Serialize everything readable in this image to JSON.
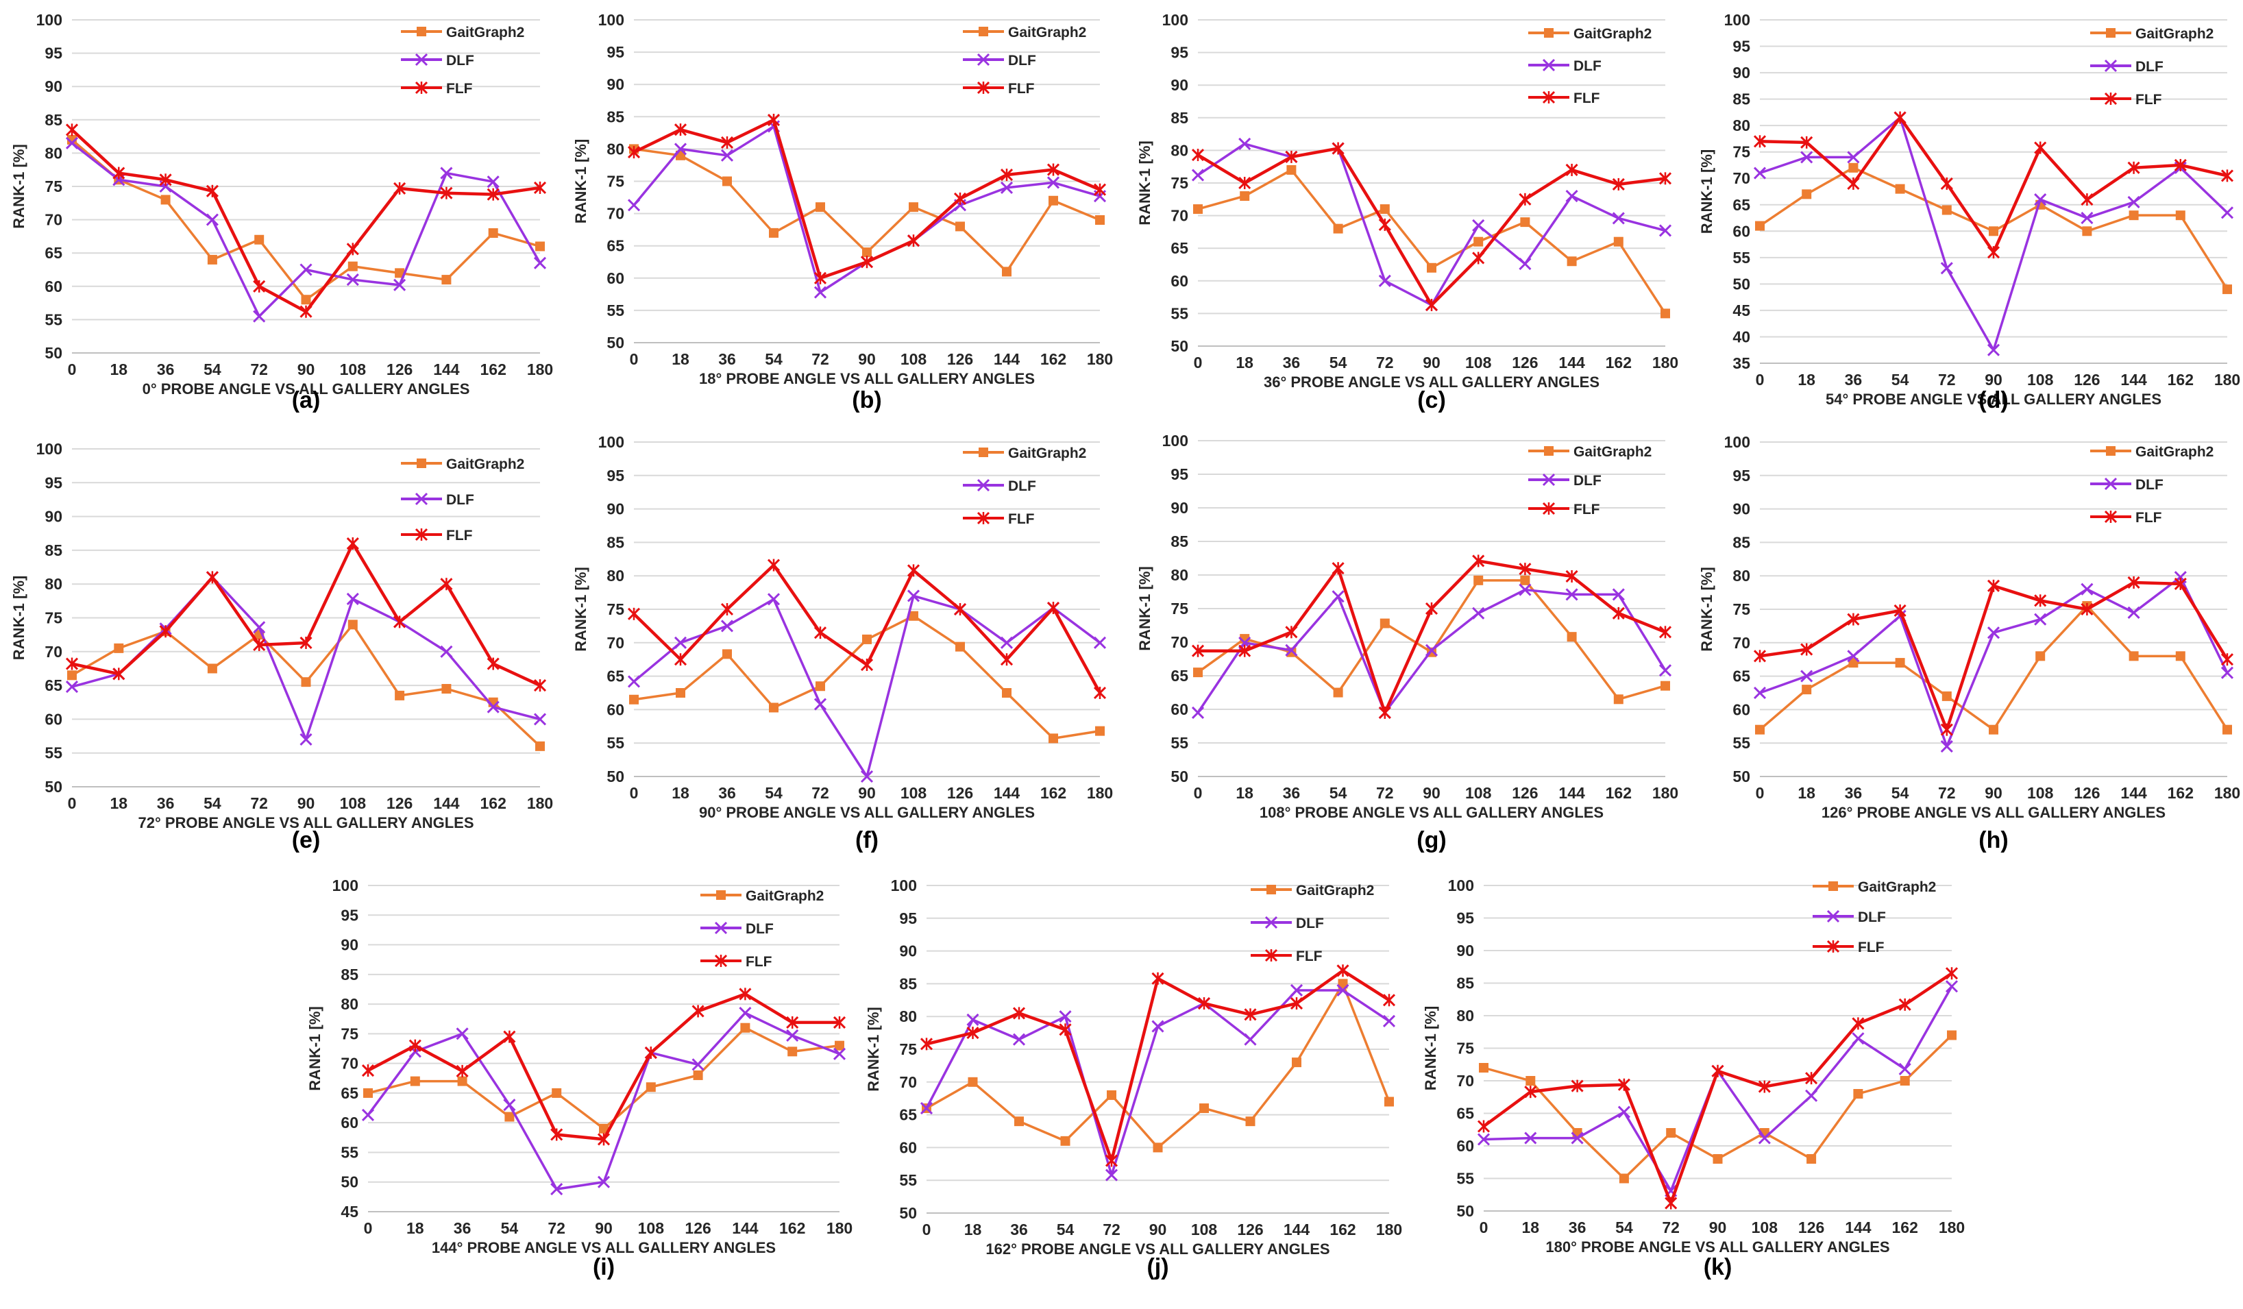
{
  "colors": {
    "GaitGraph2": "#ED7D31",
    "DLF": "#9933E0",
    "FLF": "#E81010"
  },
  "chart_data": [
    {
      "type": "line",
      "panel_label": "(a)",
      "xlabel": "0° PROBE ANGLE VS ALL GALLERY ANGLES",
      "ylabel": "RANK-1 [%]",
      "categories": [
        "0",
        "18",
        "36",
        "54",
        "72",
        "90",
        "108",
        "126",
        "144",
        "162",
        "180"
      ],
      "ylim": [
        50,
        100
      ],
      "yticks": [
        "50",
        "55",
        "60",
        "65",
        "70",
        "75",
        "80",
        "85",
        "90",
        "95",
        "100"
      ],
      "series": [
        {
          "name": "GaitGraph2",
          "values": [
            82,
            76,
            73,
            64,
            67,
            58,
            63,
            62,
            61,
            68,
            66
          ]
        },
        {
          "name": "DLF",
          "values": [
            81.5,
            76,
            75,
            70,
            55.5,
            62.5,
            61,
            60.2,
            77,
            75.7,
            63.5
          ]
        },
        {
          "name": "FLF",
          "values": [
            83.5,
            77,
            76,
            74.3,
            60,
            56.2,
            65.6,
            74.7,
            74,
            73.8,
            74.8
          ]
        }
      ]
    },
    {
      "type": "line",
      "panel_label": "(b)",
      "xlabel": "18° PROBE ANGLE VS ALL GALLERY ANGLES",
      "ylabel": "RANK-1 [%]",
      "categories": [
        "0",
        "18",
        "36",
        "54",
        "72",
        "90",
        "108",
        "126",
        "144",
        "162",
        "180"
      ],
      "ylim": [
        50,
        100
      ],
      "yticks": [
        "50",
        "55",
        "60",
        "65",
        "70",
        "75",
        "80",
        "85",
        "90",
        "95",
        "100"
      ],
      "series": [
        {
          "name": "GaitGraph2",
          "values": [
            80,
            79,
            75,
            67,
            71,
            64,
            71,
            68,
            61,
            72,
            69
          ]
        },
        {
          "name": "DLF",
          "values": [
            71.3,
            80,
            79,
            83.5,
            57.8,
            62.5,
            65.8,
            71.3,
            74,
            74.8,
            72.7
          ]
        },
        {
          "name": "FLF",
          "values": [
            79.5,
            83,
            81,
            84.5,
            60,
            62.5,
            65.8,
            72.3,
            76,
            76.8,
            73.7
          ]
        }
      ]
    },
    {
      "type": "line",
      "panel_label": "(c)",
      "xlabel": "36° PROBE ANGLE VS ALL GALLERY ANGLES",
      "ylabel": "RANK-1 [%]",
      "categories": [
        "0",
        "18",
        "36",
        "54",
        "72",
        "90",
        "108",
        "126",
        "144",
        "162",
        "180"
      ],
      "ylim": [
        50,
        100
      ],
      "yticks": [
        "50",
        "55",
        "60",
        "65",
        "70",
        "75",
        "80",
        "85",
        "90",
        "95",
        "100"
      ],
      "series": [
        {
          "name": "GaitGraph2",
          "values": [
            71,
            73,
            77,
            68,
            71,
            62,
            66,
            69,
            63,
            66,
            55
          ]
        },
        {
          "name": "DLF",
          "values": [
            76.2,
            81,
            79,
            80.3,
            60,
            56.3,
            68.5,
            62.6,
            73,
            69.6,
            67.7
          ]
        },
        {
          "name": "FLF",
          "values": [
            79.3,
            75,
            79,
            80.3,
            68.6,
            56.3,
            63.5,
            72.5,
            77,
            74.8,
            75.7
          ]
        }
      ]
    },
    {
      "type": "line",
      "panel_label": "(d)",
      "xlabel": "54° PROBE ANGLE VS ALL GALLERY ANGLES",
      "ylabel": "RANK-1 [%]",
      "categories": [
        "0",
        "18",
        "36",
        "54",
        "72",
        "90",
        "108",
        "126",
        "144",
        "162",
        "180"
      ],
      "ylim": [
        35,
        100
      ],
      "yticks": [
        "35",
        "40",
        "45",
        "50",
        "55",
        "60",
        "65",
        "70",
        "75",
        "80",
        "85",
        "90",
        "95",
        "100"
      ],
      "series": [
        {
          "name": "GaitGraph2",
          "values": [
            61,
            67,
            72,
            68,
            64,
            60,
            65,
            60,
            63,
            63,
            49
          ]
        },
        {
          "name": "DLF",
          "values": [
            71,
            74,
            74,
            81.5,
            53,
            37.5,
            66,
            62.5,
            65.5,
            72,
            63.5
          ]
        },
        {
          "name": "FLF",
          "values": [
            77,
            76.8,
            69,
            81.5,
            69,
            56,
            75.8,
            66,
            72,
            72.5,
            70.5
          ]
        }
      ]
    },
    {
      "type": "line",
      "panel_label": "(e)",
      "xlabel": "72° PROBE ANGLE VS ALL GALLERY ANGLES",
      "ylabel": "RANK-1 [%]",
      "categories": [
        "0",
        "18",
        "36",
        "54",
        "72",
        "90",
        "108",
        "126",
        "144",
        "162",
        "180"
      ],
      "ylim": [
        50,
        100
      ],
      "yticks": [
        "50",
        "55",
        "60",
        "65",
        "70",
        "75",
        "80",
        "85",
        "90",
        "95",
        "100"
      ],
      "series": [
        {
          "name": "GaitGraph2",
          "values": [
            66.5,
            70.5,
            73,
            67.5,
            72.5,
            65.5,
            74,
            63.5,
            64.5,
            62.5,
            56
          ]
        },
        {
          "name": "DLF",
          "values": [
            64.8,
            66.7,
            73.4,
            81,
            73.6,
            57,
            77.8,
            74.4,
            70,
            61.8,
            60
          ]
        },
        {
          "name": "FLF",
          "values": [
            68.2,
            66.7,
            73,
            81,
            71,
            71.3,
            86,
            74.4,
            80,
            68.2,
            65
          ]
        }
      ]
    },
    {
      "type": "line",
      "panel_label": "(f)",
      "xlabel": "90° PROBE ANGLE VS ALL GALLERY ANGLES",
      "ylabel": "RANK-1 [%]",
      "categories": [
        "0",
        "18",
        "36",
        "54",
        "72",
        "90",
        "108",
        "126",
        "144",
        "162",
        "180"
      ],
      "ylim": [
        50,
        100
      ],
      "yticks": [
        "50",
        "55",
        "60",
        "65",
        "70",
        "75",
        "80",
        "85",
        "90",
        "95",
        "100"
      ],
      "series": [
        {
          "name": "GaitGraph2",
          "values": [
            61.5,
            62.5,
            68.3,
            60.3,
            63.5,
            70.5,
            74,
            69.4,
            62.5,
            55.7,
            56.8
          ]
        },
        {
          "name": "DLF",
          "values": [
            64.2,
            70,
            72.5,
            76.5,
            60.8,
            50,
            77,
            75,
            70,
            75.2,
            70
          ]
        },
        {
          "name": "FLF",
          "values": [
            74.3,
            67.5,
            75,
            81.6,
            71.5,
            66.7,
            80.8,
            75,
            67.5,
            75.2,
            62.5
          ]
        }
      ]
    },
    {
      "type": "line",
      "panel_label": "(g)",
      "xlabel": "108° PROBE ANGLE VS ALL GALLERY ANGLES",
      "ylabel": "RANK-1 [%]",
      "categories": [
        "0",
        "18",
        "36",
        "54",
        "72",
        "90",
        "108",
        "126",
        "144",
        "162",
        "180"
      ],
      "ylim": [
        50,
        100
      ],
      "yticks": [
        "50",
        "55",
        "60",
        "65",
        "70",
        "75",
        "80",
        "85",
        "90",
        "95",
        "100"
      ],
      "series": [
        {
          "name": "GaitGraph2",
          "values": [
            65.5,
            70.5,
            68.5,
            62.5,
            72.8,
            68.5,
            79.2,
            79.2,
            70.8,
            61.5,
            63.5
          ]
        },
        {
          "name": "DLF",
          "values": [
            59.5,
            69.9,
            68.8,
            76.8,
            59.5,
            68.8,
            74.3,
            77.8,
            77.1,
            77.1,
            65.8
          ]
        },
        {
          "name": "FLF",
          "values": [
            68.7,
            68.7,
            71.5,
            81,
            59.5,
            75,
            82.1,
            80.9,
            79.8,
            74.3,
            71.5
          ]
        }
      ]
    },
    {
      "type": "line",
      "panel_label": "(h)",
      "xlabel": "126° PROBE ANGLE VS ALL GALLERY ANGLES",
      "ylabel": "RANK-1 [%]",
      "categories": [
        "0",
        "18",
        "36",
        "54",
        "72",
        "90",
        "108",
        "126",
        "144",
        "162",
        "180"
      ],
      "ylim": [
        50,
        100
      ],
      "yticks": [
        "50",
        "55",
        "60",
        "65",
        "70",
        "75",
        "80",
        "85",
        "90",
        "95",
        "100"
      ],
      "series": [
        {
          "name": "GaitGraph2",
          "values": [
            57,
            63,
            67,
            67,
            62,
            57,
            68,
            75.5,
            68,
            68,
            57
          ]
        },
        {
          "name": "DLF",
          "values": [
            62.5,
            65,
            68,
            74,
            54.5,
            71.5,
            73.5,
            78,
            74.5,
            79.8,
            65.5
          ]
        },
        {
          "name": "FLF",
          "values": [
            68,
            69,
            73.5,
            74.8,
            57,
            78.5,
            76.3,
            75,
            79,
            78.8,
            67.5
          ]
        }
      ]
    },
    {
      "type": "line",
      "panel_label": "(i)",
      "xlabel": "144° PROBE ANGLE VS ALL GALLERY ANGLES",
      "ylabel": "RANK-1 [%]",
      "categories": [
        "0",
        "18",
        "36",
        "54",
        "72",
        "90",
        "108",
        "126",
        "144",
        "162",
        "180"
      ],
      "ylim": [
        45,
        100
      ],
      "yticks": [
        "45",
        "50",
        "55",
        "60",
        "65",
        "70",
        "75",
        "80",
        "85",
        "90",
        "95",
        "100"
      ],
      "series": [
        {
          "name": "GaitGraph2",
          "values": [
            65,
            67,
            67,
            61,
            65,
            59,
            66,
            68,
            76,
            72,
            73
          ]
        },
        {
          "name": "DLF",
          "values": [
            61.3,
            72,
            75,
            63,
            48.8,
            50,
            71.8,
            69.8,
            78.5,
            74.7,
            71.6
          ]
        },
        {
          "name": "FLF",
          "values": [
            68.8,
            73,
            68.7,
            74.5,
            58,
            57.2,
            71.8,
            78.8,
            81.7,
            76.9,
            76.9
          ]
        }
      ]
    },
    {
      "type": "line",
      "panel_label": "(j)",
      "xlabel": "162° PROBE ANGLE VS ALL GALLERY ANGLES",
      "ylabel": "RANK-1 [%]",
      "categories": [
        "0",
        "18",
        "36",
        "54",
        "72",
        "90",
        "108",
        "126",
        "144",
        "162",
        "180"
      ],
      "ylim": [
        50,
        100
      ],
      "yticks": [
        "50",
        "55",
        "60",
        "65",
        "70",
        "75",
        "80",
        "85",
        "90",
        "95",
        "100"
      ],
      "series": [
        {
          "name": "GaitGraph2",
          "values": [
            66,
            70,
            64,
            61,
            68,
            60,
            66,
            64,
            73,
            85,
            67
          ]
        },
        {
          "name": "DLF",
          "values": [
            66,
            79.5,
            76.5,
            80,
            55.8,
            78.5,
            82,
            76.5,
            84,
            84,
            79.3
          ]
        },
        {
          "name": "FLF",
          "values": [
            75.8,
            77.5,
            80.5,
            78,
            58,
            85.8,
            82,
            80.3,
            82,
            87,
            82.5
          ]
        }
      ]
    },
    {
      "type": "line",
      "panel_label": "(k)",
      "xlabel": "180° PROBE ANGLE VS ALL GALLERY ANGLES",
      "ylabel": "RANK-1 [%]",
      "categories": [
        "0",
        "18",
        "36",
        "54",
        "72",
        "90",
        "108",
        "126",
        "144",
        "162",
        "180"
      ],
      "ylim": [
        50,
        100
      ],
      "yticks": [
        "50",
        "55",
        "60",
        "65",
        "70",
        "75",
        "80",
        "85",
        "90",
        "95",
        "100"
      ],
      "series": [
        {
          "name": "GaitGraph2",
          "values": [
            72,
            70,
            62,
            55,
            62,
            58,
            62,
            58,
            68,
            70,
            77
          ]
        },
        {
          "name": "DLF",
          "values": [
            61,
            61.2,
            61.2,
            65.2,
            53.1,
            71.5,
            61.2,
            67.7,
            76.5,
            71.8,
            84.5
          ]
        },
        {
          "name": "FLF",
          "values": [
            63,
            68.3,
            69.2,
            69.4,
            51.2,
            71.5,
            69.1,
            70.4,
            78.8,
            81.7,
            86.5
          ]
        }
      ]
    }
  ]
}
